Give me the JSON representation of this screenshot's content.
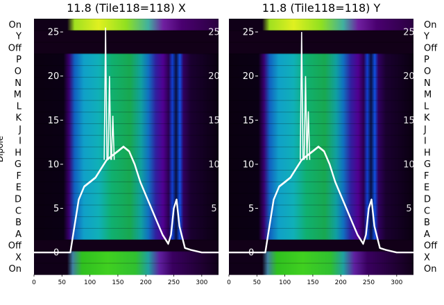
{
  "chart_data": [
    {
      "type": "heatmap",
      "title": "11.8 (Tile118=118) X",
      "ylabel": "Dipole",
      "dipole_labels": [
        "On",
        "Y",
        "Off",
        "P",
        "O",
        "N",
        "M",
        "L",
        "K",
        "J",
        "I",
        "H",
        "G",
        "F",
        "E",
        "D",
        "C",
        "B",
        "A",
        "Off",
        "X",
        "On"
      ],
      "x_ticks": [
        0,
        50,
        100,
        150,
        200,
        250,
        300
      ],
      "xlim": [
        0,
        330
      ],
      "overlay": {
        "type": "line",
        "color": "#ffffff",
        "y_ticks": [
          0,
          5,
          10,
          15,
          20,
          25
        ],
        "ylim": [
          -2.5,
          26.5
        ],
        "x": [
          0,
          50,
          65,
          70,
          80,
          90,
          100,
          110,
          120,
          125,
          130,
          140,
          150,
          160,
          170,
          180,
          190,
          200,
          210,
          220,
          230,
          240,
          245,
          250,
          255,
          260,
          270,
          280,
          300,
          330
        ],
        "y": [
          0,
          0,
          0,
          2,
          6,
          7.5,
          8,
          8.5,
          9.5,
          10,
          10.5,
          11,
          11.5,
          12,
          11.5,
          10,
          8,
          6.5,
          5,
          3.5,
          2,
          1,
          2,
          5,
          6,
          3,
          0.5,
          0.3,
          0,
          0
        ],
        "spikes": [
          {
            "x": 128,
            "y": 25.5
          },
          {
            "x": 135,
            "y": 20
          },
          {
            "x": 141,
            "y": 15.5
          }
        ]
      }
    },
    {
      "type": "heatmap",
      "title": "11.8 (Tile118=118) Y",
      "dipole_labels": [
        "On",
        "Y",
        "Off",
        "P",
        "O",
        "N",
        "M",
        "L",
        "K",
        "J",
        "I",
        "H",
        "G",
        "F",
        "E",
        "D",
        "C",
        "B",
        "A",
        "Off",
        "X",
        "On"
      ],
      "x_ticks": [
        0,
        50,
        100,
        150,
        200,
        250,
        300
      ],
      "xlim": [
        0,
        330
      ],
      "overlay": {
        "type": "line",
        "color": "#ffffff",
        "y_ticks": [
          0,
          5,
          10,
          15,
          20,
          25
        ],
        "ylim": [
          -2.5,
          26.5
        ],
        "x": [
          0,
          50,
          65,
          70,
          80,
          90,
          100,
          110,
          120,
          125,
          130,
          140,
          150,
          160,
          170,
          180,
          190,
          200,
          210,
          220,
          230,
          240,
          245,
          250,
          255,
          260,
          270,
          280,
          300,
          330
        ],
        "y": [
          0,
          0,
          0,
          2,
          6,
          7.5,
          8,
          8.5,
          9.5,
          10,
          10.5,
          11,
          11.5,
          12,
          11.5,
          10,
          8,
          6.5,
          5,
          3.5,
          2,
          1,
          2,
          5,
          6,
          3,
          0.5,
          0.3,
          0,
          0
        ],
        "spikes": [
          {
            "x": 130,
            "y": 25
          },
          {
            "x": 137,
            "y": 20
          },
          {
            "x": 142,
            "y": 16
          }
        ]
      }
    }
  ]
}
